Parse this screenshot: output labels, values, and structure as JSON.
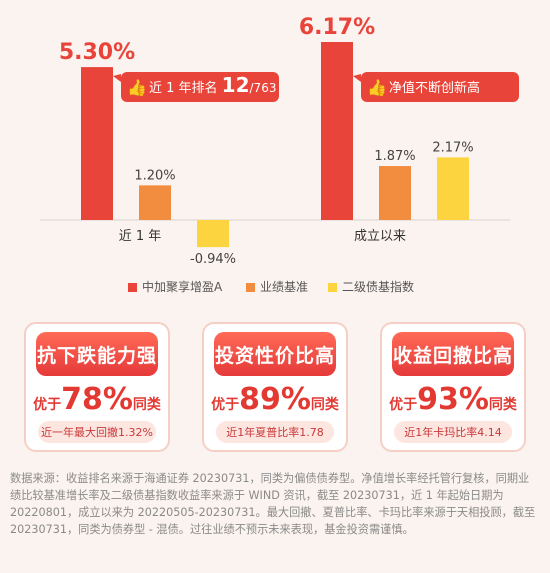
{
  "chart_data": {
    "type": "bar",
    "categories": [
      "近 1 年",
      "成立以来"
    ],
    "series": [
      {
        "name": "中加聚享增盈A",
        "values": [
          5.3,
          6.17
        ],
        "color": "#e8443a"
      },
      {
        "name": "业绩基准",
        "values": [
          1.2,
          1.87
        ],
        "color": "#f28c3e"
      },
      {
        "name": "二级债基指数",
        "values": [
          -0.94,
          2.17
        ],
        "color": "#fcd43f"
      }
    ],
    "value_labels": [
      [
        "5.30%",
        "1.20%",
        "-0.94%"
      ],
      [
        "6.17%",
        "1.87%",
        "2.17%"
      ]
    ],
    "callouts": [
      {
        "pre": "近 1 年排名 ",
        "main": "12",
        "post": "/763"
      },
      {
        "pre": "净值不断创新高",
        "main": "",
        "post": ""
      }
    ],
    "legend_position": "bottom",
    "grid": false
  },
  "cards": [
    {
      "title": "抗下跌能力强",
      "pre": "优于",
      "value": "78%",
      "post": "同类",
      "foot": "近一年最大回撤1.32%"
    },
    {
      "title": "投资性价比高",
      "pre": "优于",
      "value": "89%",
      "post": "同类",
      "foot": "近1年夏普比率1.78"
    },
    {
      "title": "收益回撤比高",
      "pre": "优于",
      "value": "93%",
      "post": "同类",
      "foot": "近1年卡玛比率4.14"
    }
  ],
  "note": "数据来源：收益排名来源于海通证券 20230731，同类为偏债债券型。净值增长率经托管行复核，同期业绩比较基准增长率及二级债基指数收益率来源于 WIND 资讯，截至 20230731，近 1 年起始日期为 20220801，成立以来为 20220505-20230731。最大回撤、夏普比率、卡玛比率来源于天相投顾，截至 20230731，同类为债券型 - 混债。过往业绩不预示未来表现，基金投资需谨慎。",
  "colors": {
    "accent": "#e8443a",
    "background": "#fbf3ef"
  }
}
